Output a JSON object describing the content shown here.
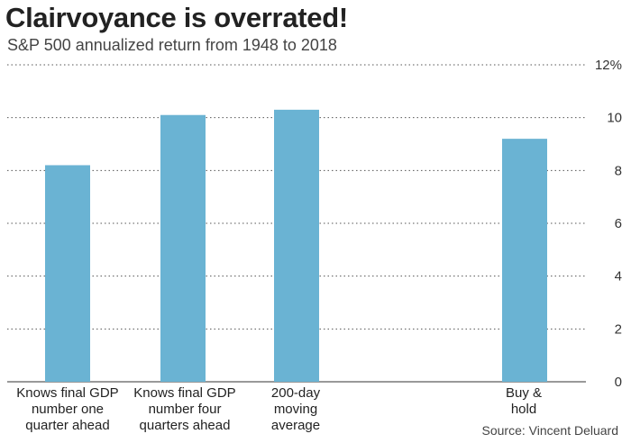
{
  "title": "Clairvoyance is overrated!",
  "subtitle": "S&P 500 annualized return from 1948 to 2018",
  "source": "Source: Vincent Deluard",
  "colors": {
    "bar": "#6ab3d3",
    "gridline": "#555555",
    "baseline": "#333333"
  },
  "chart_data": {
    "type": "bar",
    "title": "Clairvoyance is overrated!",
    "subtitle": "S&P 500 annualized return from 1948 to 2018",
    "categories": [
      "Knows final GDP\nnumber one\nquarter ahead",
      "Knows final GDP\nnumber four\nquarters ahead",
      "200-day\nmoving\naverage",
      "",
      "Buy &\nhold"
    ],
    "values": [
      8.2,
      10.1,
      10.3,
      null,
      9.2
    ],
    "ylim": [
      0,
      12
    ],
    "yticks": [
      0,
      2,
      4,
      6,
      8,
      10,
      12
    ],
    "ytick_labels": [
      "0",
      "2",
      "4",
      "6",
      "8",
      "10",
      "12%"
    ],
    "grid": "horizontal dotted",
    "xlabel": "",
    "ylabel": ""
  }
}
